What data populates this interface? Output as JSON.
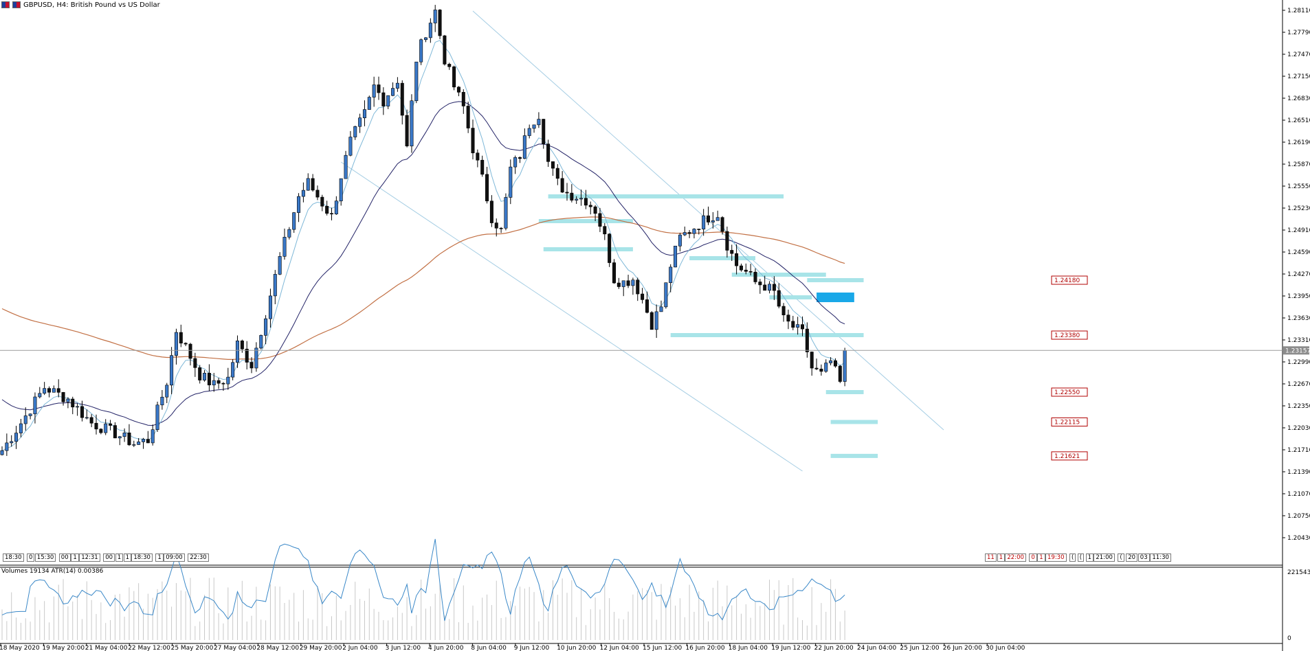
{
  "header": {
    "title": "GBPUSD, H4:  British Pound vs US Dollar"
  },
  "indicator": {
    "label": "Volumes 19134 ATR(14) 0.00386",
    "axis_top": "221543",
    "axis_bottom": "0"
  },
  "current_price": "1.23157",
  "price_levels": [
    {
      "label": "1.24180",
      "value": 1.2418
    },
    {
      "label": "1.23380",
      "value": 1.2338
    },
    {
      "label": "1.22550",
      "value": 1.2255
    },
    {
      "label": "1.22115",
      "value": 1.22115
    },
    {
      "label": "1.21621",
      "value": 1.21621
    }
  ],
  "timeboxes_left": [
    "18:30",
    "0",
    "15:30",
    "00",
    "1",
    "12:31",
    "00",
    "1",
    "1",
    "18:30",
    "1",
    "09:00",
    "22:30"
  ],
  "timeboxes_right": [
    "11",
    "1",
    "22:00",
    "0",
    "1",
    "19:30",
    "(",
    "(",
    "1",
    "21:00",
    "(",
    "20",
    "03",
    "11:30"
  ],
  "colors": {
    "bull": "#3a78c8",
    "bear": "#111111",
    "ma_fast": "#7fb8d8",
    "ma_mid": "#222266",
    "ma_slow": "#c27044",
    "zone": "#a8e4e8",
    "zone_strong": "#19a8e8",
    "level_text": "#b00000"
  },
  "chart_data": {
    "type": "candlestick",
    "symbol": "GBPUSD",
    "timeframe": "H4",
    "y_ticks": [
      "1.28110",
      "1.27790",
      "1.27470",
      "1.27150",
      "1.26830",
      "1.26510",
      "1.26190",
      "1.25870",
      "1.25550",
      "1.25230",
      "1.24910",
      "1.24590",
      "1.24270",
      "1.23950",
      "1.23630",
      "1.23310",
      "1.22990",
      "1.22670",
      "1.22350",
      "1.22030",
      "1.21710",
      "1.21390",
      "1.21070",
      "1.20750",
      "1.20430"
    ],
    "ylim": [
      1.2008,
      1.2822
    ],
    "x_labels": [
      "18 May 2020",
      "19 May 20:00",
      "21 May 04:00",
      "22 May 12:00",
      "25 May 20:00",
      "27 May 04:00",
      "28 May 12:00",
      "29 May 20:00",
      "2 Jun 04:00",
      "3 Jun 12:00",
      "4 Jun 20:00",
      "8 Jun 04:00",
      "9 Jun 12:00",
      "10 Jun 20:00",
      "12 Jun 04:00",
      "15 Jun 12:00",
      "16 Jun 20:00",
      "18 Jun 04:00",
      "19 Jun 12:00",
      "22 Jun 20:00",
      "24 Jun 04:00",
      "25 Jun 12:00",
      "26 Jun 20:00",
      "30 Jun 04:00"
    ],
    "anchors": [
      [
        0,
        1.217
      ],
      [
        4,
        1.221
      ],
      [
        9,
        1.2262
      ],
      [
        14,
        1.2245
      ],
      [
        19,
        1.221
      ],
      [
        24,
        1.2195
      ],
      [
        28,
        1.218
      ],
      [
        31,
        1.2185
      ],
      [
        35,
        1.227
      ],
      [
        37,
        1.2345
      ],
      [
        39,
        1.232
      ],
      [
        42,
        1.228
      ],
      [
        45,
        1.2265
      ],
      [
        48,
        1.2275
      ],
      [
        50,
        1.2325
      ],
      [
        53,
        1.2295
      ],
      [
        56,
        1.237
      ],
      [
        59,
        1.245
      ],
      [
        63,
        1.254
      ],
      [
        65,
        1.256
      ],
      [
        68,
        1.253
      ],
      [
        70,
        1.251
      ],
      [
        72,
        1.257
      ],
      [
        74,
        1.262
      ],
      [
        77,
        1.266
      ],
      [
        79,
        1.27
      ],
      [
        81,
        1.268
      ],
      [
        84,
        1.271
      ],
      [
        86,
        1.261
      ],
      [
        88,
        1.274
      ],
      [
        90,
        1.278
      ],
      [
        92,
        1.281
      ],
      [
        94,
        1.274
      ],
      [
        96,
        1.27
      ],
      [
        98,
        1.267
      ],
      [
        100,
        1.261
      ],
      [
        102,
        1.2565
      ],
      [
        104,
        1.251
      ],
      [
        106,
        1.249
      ],
      [
        108,
        1.258
      ],
      [
        110,
        1.26
      ],
      [
        112,
        1.2645
      ],
      [
        114,
        1.266
      ],
      [
        116,
        1.259
      ],
      [
        118,
        1.256
      ],
      [
        120,
        1.2545
      ],
      [
        122,
        1.254
      ],
      [
        124,
        1.2535
      ],
      [
        126,
        1.252
      ],
      [
        128,
        1.248
      ],
      [
        130,
        1.242
      ],
      [
        132,
        1.2415
      ],
      [
        134,
        1.242
      ],
      [
        136,
        1.239
      ],
      [
        138,
        1.2355
      ],
      [
        140,
        1.238
      ],
      [
        142,
        1.244
      ],
      [
        144,
        1.248
      ],
      [
        146,
        1.249
      ],
      [
        148,
        1.25
      ],
      [
        150,
        1.251
      ],
      [
        152,
        1.2515
      ],
      [
        154,
        1.247
      ],
      [
        156,
        1.244
      ],
      [
        158,
        1.243
      ],
      [
        160,
        1.2415
      ],
      [
        162,
        1.241
      ],
      [
        164,
        1.24
      ],
      [
        166,
        1.236
      ],
      [
        168,
        1.235
      ],
      [
        170,
        1.234
      ],
      [
        172,
        1.229
      ],
      [
        174,
        1.228
      ],
      [
        176,
        1.23
      ],
      [
        178,
        1.2268
      ],
      [
        179,
        1.23
      ],
      [
        180,
        1.2318
      ]
    ],
    "overlays": {
      "ma_fast_period": "fast",
      "ma_mid_period": "mid",
      "ma_slow_period": "slow"
    },
    "channel": [
      {
        "from": [
          100,
          1.281
        ],
        "to": [
          200,
          1.22
        ]
      },
      {
        "from": [
          72,
          1.259
        ],
        "to": [
          170,
          1.214
        ]
      }
    ],
    "zones": [
      {
        "x1": 116,
        "x2": 166,
        "y": 1.254
      },
      {
        "x1": 114,
        "x2": 134,
        "y": 1.2504
      },
      {
        "x1": 115,
        "x2": 134,
        "y": 1.2463
      },
      {
        "x1": 146,
        "x2": 160,
        "y": 1.245
      },
      {
        "x1": 155,
        "x2": 175,
        "y": 1.2426
      },
      {
        "x1": 171,
        "x2": 183,
        "y": 1.2418
      },
      {
        "x1": 163,
        "x2": 172,
        "y": 1.2393
      },
      {
        "x1": 142,
        "x2": 183,
        "y": 1.2338
      },
      {
        "x1": 175,
        "x2": 183,
        "y": 1.2255
      },
      {
        "x1": 176,
        "x2": 186,
        "y": 1.22115
      },
      {
        "x1": 176,
        "x2": 186,
        "y": 1.21621
      }
    ],
    "strong_zone": {
      "x1": 173,
      "x2": 181,
      "y1": 1.24,
      "y2": 1.2386
    }
  }
}
